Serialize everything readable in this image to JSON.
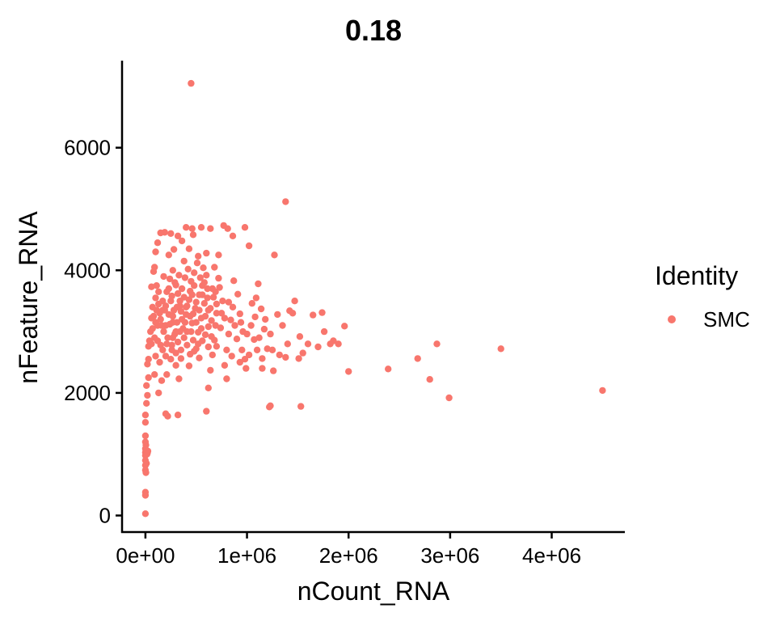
{
  "chart_data": {
    "type": "scatter",
    "title": "0.18",
    "xlabel": "nCount_RNA",
    "ylabel": "nFeature_RNA",
    "xlim": [
      -230000,
      4720000
    ],
    "ylim": [
      -270000,
      0
    ],
    "y_range": [
      -270,
      7420
    ],
    "x_ticks": [
      {
        "value": 0,
        "label": "0e+00"
      },
      {
        "value": 1000000,
        "label": "1e+06"
      },
      {
        "value": 2000000,
        "label": "2e+06"
      },
      {
        "value": 3000000,
        "label": "3e+06"
      },
      {
        "value": 4000000,
        "label": "4e+06"
      }
    ],
    "y_ticks": [
      {
        "value": 0,
        "label": "0"
      },
      {
        "value": 2000,
        "label": "2000"
      },
      {
        "value": 4000,
        "label": "4000"
      },
      {
        "value": 6000,
        "label": "6000"
      }
    ],
    "grid": false,
    "legend": {
      "title": "Identity",
      "position": "right",
      "entries": [
        {
          "name": "SMC",
          "color": "#F8766D"
        }
      ]
    },
    "series": [
      {
        "name": "SMC",
        "color": "#F8766D",
        "points": [
          [
            450000,
            7050
          ],
          [
            1380000,
            5120
          ],
          [
            4500000,
            2040
          ],
          [
            3500000,
            2720
          ],
          [
            2870000,
            2800
          ],
          [
            2680000,
            2560
          ],
          [
            2800000,
            2220
          ],
          [
            2990000,
            1920
          ],
          [
            2390000,
            2390
          ],
          [
            2000000,
            2350
          ],
          [
            1960000,
            3090
          ],
          [
            1820000,
            2800
          ],
          [
            1760000,
            3000
          ],
          [
            1740000,
            3310
          ],
          [
            1650000,
            3270
          ],
          [
            1520000,
            2920
          ],
          [
            1510000,
            2560
          ],
          [
            1470000,
            3500
          ],
          [
            1550000,
            2650
          ],
          [
            1530000,
            1780
          ],
          [
            1230000,
            1790
          ],
          [
            1220000,
            1770
          ],
          [
            1270000,
            4250
          ],
          [
            1300000,
            3280
          ],
          [
            1350000,
            3100
          ],
          [
            1420000,
            3340
          ],
          [
            1380000,
            2580
          ],
          [
            1320000,
            2620
          ],
          [
            1260000,
            2360
          ],
          [
            1230000,
            2960
          ],
          [
            1200000,
            2720
          ],
          [
            1170000,
            3040
          ],
          [
            1140000,
            3370
          ],
          [
            1110000,
            3780
          ],
          [
            1090000,
            3550
          ],
          [
            1050000,
            3460
          ],
          [
            1080000,
            3240
          ],
          [
            1070000,
            2870
          ],
          [
            1020000,
            2620
          ],
          [
            980000,
            2550
          ],
          [
            960000,
            3000
          ],
          [
            930000,
            3290
          ],
          [
            910000,
            3610
          ],
          [
            870000,
            3830
          ],
          [
            860000,
            3400
          ],
          [
            840000,
            3190
          ],
          [
            820000,
            2960
          ],
          [
            800000,
            2700
          ],
          [
            780000,
            2450
          ],
          [
            800000,
            2230
          ],
          [
            760000,
            3500
          ],
          [
            730000,
            3720
          ],
          [
            720000,
            3870
          ],
          [
            700000,
            3300
          ],
          [
            690000,
            3100
          ],
          [
            680000,
            2860
          ],
          [
            660000,
            2620
          ],
          [
            640000,
            2370
          ],
          [
            620000,
            2080
          ],
          [
            600000,
            1700
          ],
          [
            980000,
            4700
          ],
          [
            860000,
            4560
          ],
          [
            810000,
            4680
          ],
          [
            770000,
            4730
          ],
          [
            1020000,
            4400
          ],
          [
            640000,
            4680
          ],
          [
            550000,
            4700
          ],
          [
            460000,
            4680
          ],
          [
            400000,
            4700
          ],
          [
            360000,
            4480
          ],
          [
            320000,
            4560
          ],
          [
            250000,
            4600
          ],
          [
            190000,
            4620
          ],
          [
            150000,
            4610
          ],
          [
            120000,
            4450
          ],
          [
            100000,
            4300
          ],
          [
            90000,
            4050
          ],
          [
            80000,
            3980
          ],
          [
            60000,
            3730
          ],
          [
            70000,
            3400
          ],
          [
            60000,
            3220
          ],
          [
            50000,
            3000
          ],
          [
            40000,
            2850
          ],
          [
            30000,
            2760
          ],
          [
            30000,
            2550
          ],
          [
            20000,
            2470
          ],
          [
            30000,
            2250
          ],
          [
            10000,
            2120
          ],
          [
            20000,
            1960
          ],
          [
            10000,
            1830
          ],
          [
            0,
            1640
          ],
          [
            0,
            1520
          ],
          [
            0,
            1300
          ],
          [
            0,
            1200
          ],
          [
            0,
            1090
          ],
          [
            0,
            1030
          ],
          [
            0,
            980
          ],
          [
            0,
            900
          ],
          [
            0,
            820
          ],
          [
            0,
            740
          ],
          [
            0,
            380
          ],
          [
            0,
            330
          ],
          [
            0,
            30
          ],
          [
            20000,
            1020
          ],
          [
            10000,
            850
          ],
          [
            5000,
            1150
          ],
          [
            15000,
            1000
          ],
          [
            25000,
            1050
          ],
          [
            5000,
            700
          ],
          [
            200000,
            1660
          ],
          [
            220000,
            1620
          ],
          [
            320000,
            1640
          ],
          [
            100000,
            2600
          ],
          [
            120000,
            2850
          ],
          [
            150000,
            3200
          ],
          [
            170000,
            3350
          ],
          [
            200000,
            3100
          ],
          [
            230000,
            3280
          ],
          [
            250000,
            3500
          ],
          [
            280000,
            3350
          ],
          [
            310000,
            3150
          ],
          [
            340000,
            3420
          ],
          [
            370000,
            3050
          ],
          [
            400000,
            3280
          ],
          [
            430000,
            3520
          ],
          [
            460000,
            3140
          ],
          [
            490000,
            3380
          ],
          [
            520000,
            2990
          ],
          [
            550000,
            3220
          ],
          [
            580000,
            3460
          ],
          [
            610000,
            3700
          ],
          [
            640000,
            3380
          ],
          [
            670000,
            3560
          ],
          [
            180000,
            3900
          ],
          [
            210000,
            3650
          ],
          [
            240000,
            3860
          ],
          [
            270000,
            4000
          ],
          [
            300000,
            3760
          ],
          [
            330000,
            3920
          ],
          [
            360000,
            3700
          ],
          [
            390000,
            3880
          ],
          [
            420000,
            4020
          ],
          [
            450000,
            3820
          ],
          [
            480000,
            3960
          ],
          [
            510000,
            4120
          ],
          [
            540000,
            3880
          ],
          [
            570000,
            4040
          ],
          [
            600000,
            3920
          ],
          [
            380000,
            4150
          ],
          [
            230000,
            4250
          ],
          [
            280000,
            4340
          ],
          [
            180000,
            3000
          ],
          [
            220000,
            2900
          ],
          [
            260000,
            2780
          ],
          [
            290000,
            2960
          ],
          [
            320000,
            2830
          ],
          [
            350000,
            2700
          ],
          [
            380000,
            2900
          ],
          [
            410000,
            2780
          ],
          [
            440000,
            2630
          ],
          [
            470000,
            2860
          ],
          [
            500000,
            2720
          ],
          [
            530000,
            2570
          ],
          [
            560000,
            2850
          ],
          [
            590000,
            2950
          ],
          [
            250000,
            2550
          ],
          [
            300000,
            2450
          ],
          [
            350000,
            2560
          ],
          [
            430000,
            2440
          ],
          [
            480000,
            2680
          ],
          [
            150000,
            2780
          ],
          [
            120000,
            3100
          ],
          [
            140000,
            3300
          ],
          [
            170000,
            3500
          ],
          [
            200000,
            3420
          ],
          [
            230000,
            3700
          ],
          [
            260000,
            3580
          ],
          [
            290000,
            3800
          ],
          [
            320000,
            3620
          ],
          [
            350000,
            3330
          ],
          [
            380000,
            3560
          ],
          [
            410000,
            3420
          ],
          [
            440000,
            3660
          ],
          [
            470000,
            3290
          ],
          [
            500000,
            3480
          ],
          [
            530000,
            3350
          ],
          [
            560000,
            3600
          ],
          [
            590000,
            3250
          ],
          [
            620000,
            3080
          ],
          [
            650000,
            2920
          ],
          [
            700000,
            2760
          ],
          [
            740000,
            3060
          ],
          [
            780000,
            3220
          ],
          [
            820000,
            3480
          ],
          [
            900000,
            2880
          ],
          [
            950000,
            2700
          ],
          [
            1000000,
            2960
          ],
          [
            1100000,
            2700
          ],
          [
            1150000,
            2560
          ],
          [
            130000,
            2000
          ],
          [
            160000,
            2200
          ],
          [
            90000,
            2300
          ],
          [
            110000,
            3750
          ],
          [
            130000,
            3650
          ],
          [
            100000,
            3550
          ],
          [
            210000,
            2300
          ],
          [
            330000,
            2230
          ],
          [
            270000,
            3150
          ],
          [
            300000,
            2650
          ],
          [
            340000,
            3000
          ],
          [
            400000,
            3400
          ],
          [
            450000,
            3000
          ],
          [
            500000,
            3150
          ],
          [
            550000,
            3050
          ],
          [
            650000,
            3180
          ],
          [
            700000,
            3450
          ],
          [
            750000,
            3300
          ],
          [
            470000,
            4580
          ],
          [
            520000,
            4230
          ],
          [
            600000,
            4280
          ],
          [
            680000,
            4050
          ],
          [
            720000,
            4250
          ],
          [
            560000,
            3750
          ],
          [
            430000,
            4350
          ],
          [
            530000,
            3600
          ],
          [
            610000,
            3550
          ],
          [
            660000,
            3700
          ],
          [
            410000,
            3000
          ],
          [
            460000,
            3600
          ],
          [
            360000,
            3200
          ],
          [
            240000,
            3120
          ],
          [
            270000,
            3250
          ],
          [
            310000,
            3400
          ],
          [
            190000,
            3350
          ],
          [
            160000,
            3100
          ],
          [
            140000,
            2500
          ],
          [
            200000,
            2600
          ],
          [
            260000,
            2700
          ],
          [
            520000,
            2800
          ],
          [
            620000,
            2750
          ],
          [
            880000,
            3100
          ],
          [
            940000,
            3150
          ],
          [
            1040000,
            3100
          ],
          [
            1120000,
            2900
          ],
          [
            1180000,
            3200
          ],
          [
            850000,
            2600
          ],
          [
            930000,
            2500
          ],
          [
            990000,
            2400
          ],
          [
            1150000,
            2400
          ],
          [
            1250000,
            2700
          ],
          [
            1400000,
            2800
          ],
          [
            1450000,
            3300
          ],
          [
            1600000,
            2800
          ],
          [
            1700000,
            2750
          ],
          [
            1850000,
            2850
          ],
          [
            1900000,
            2800
          ],
          [
            580000,
            3800
          ],
          [
            620000,
            3350
          ],
          [
            690000,
            3650
          ],
          [
            480000,
            3750
          ],
          [
            440000,
            3250
          ],
          [
            390000,
            3150
          ],
          [
            340000,
            3500
          ],
          [
            300000,
            3000
          ],
          [
            270000,
            2900
          ],
          [
            210000,
            2800
          ],
          [
            170000,
            2700
          ],
          [
            130000,
            3450
          ],
          [
            110000,
            3350
          ],
          [
            80000,
            3250
          ],
          [
            100000,
            3150
          ],
          [
            70000,
            3050
          ],
          [
            90000,
            2900
          ],
          [
            60000,
            2800
          ]
        ]
      }
    ]
  }
}
